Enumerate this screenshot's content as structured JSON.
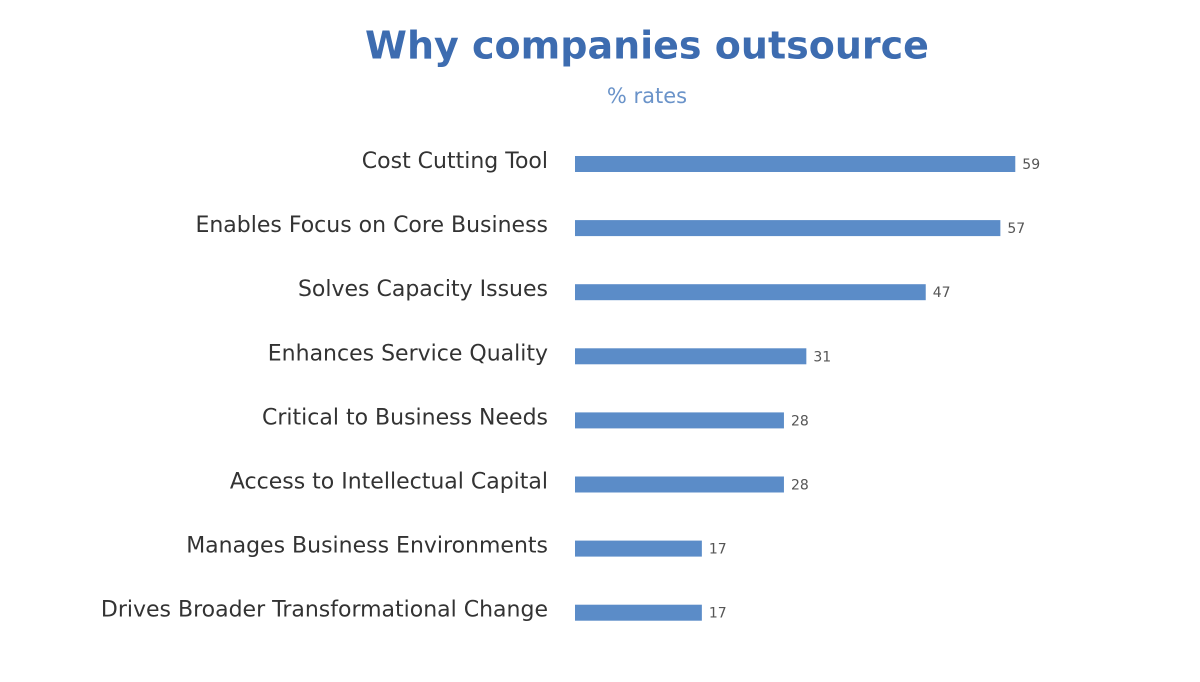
{
  "chart_data": {
    "type": "bar",
    "orientation": "horizontal",
    "title": "Why companies outsource",
    "subtitle": "% rates",
    "categories": [
      "Cost Cutting Tool",
      "Enables Focus on Core Business",
      "Solves Capacity Issues",
      "Enhances Service Quality",
      "Critical to Business Needs",
      "Access to Intellectual Capital",
      "Manages Business Environments",
      "Drives Broader Transformational Change"
    ],
    "values": [
      59,
      57,
      47,
      31,
      28,
      28,
      17,
      17
    ],
    "color": "#5b8cc8",
    "xlim": [
      0,
      80
    ]
  }
}
